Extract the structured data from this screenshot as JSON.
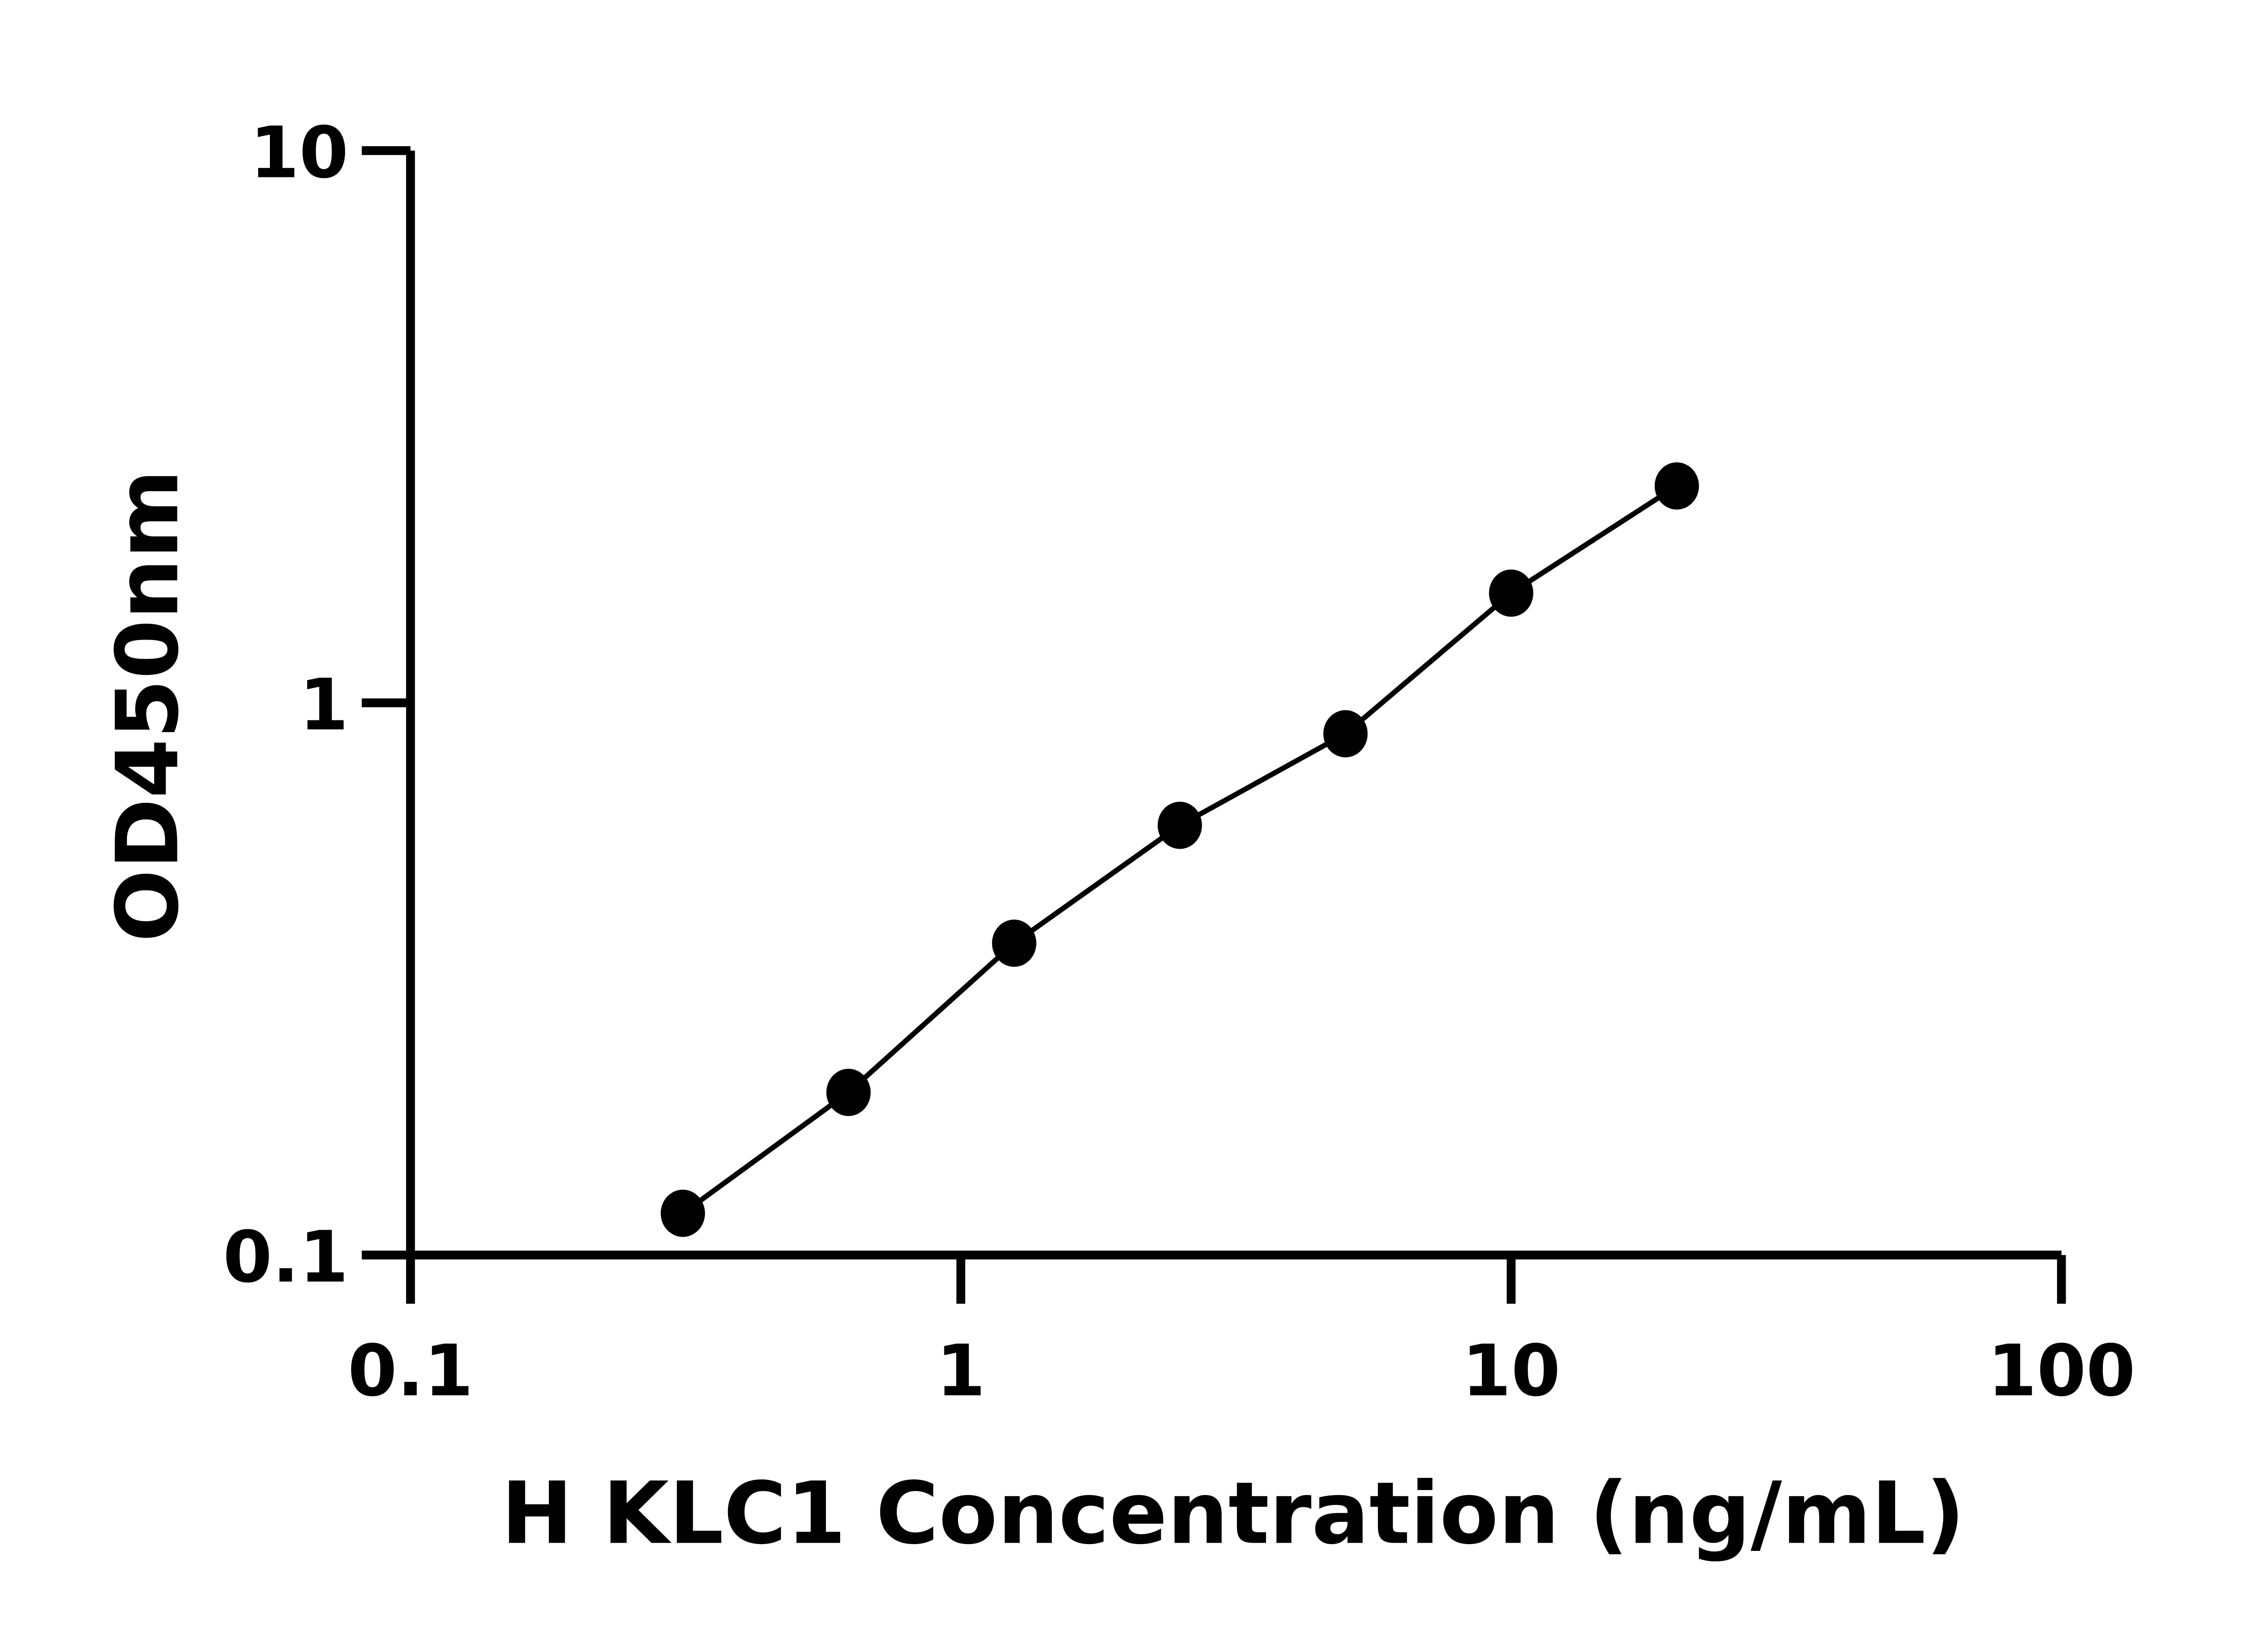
{
  "chart_data": {
    "type": "line",
    "title": "",
    "xlabel": "H KLC1 Concentration (ng/mL)",
    "ylabel": "OD450nm",
    "x_scale": "log",
    "y_scale": "log",
    "xlim": [
      0.1,
      100
    ],
    "ylim": [
      0.1,
      10
    ],
    "x_ticks": [
      "0.1",
      "1",
      "10",
      "100"
    ],
    "y_ticks": [
      "0.1",
      "1",
      "10"
    ],
    "grid": false,
    "marker": "filled-circle",
    "color": "#000000",
    "x": [
      0.3125,
      0.625,
      1.25,
      2.5,
      5,
      10,
      20
    ],
    "y": [
      0.119,
      0.197,
      0.367,
      0.6,
      0.879,
      1.58,
      2.47
    ]
  }
}
